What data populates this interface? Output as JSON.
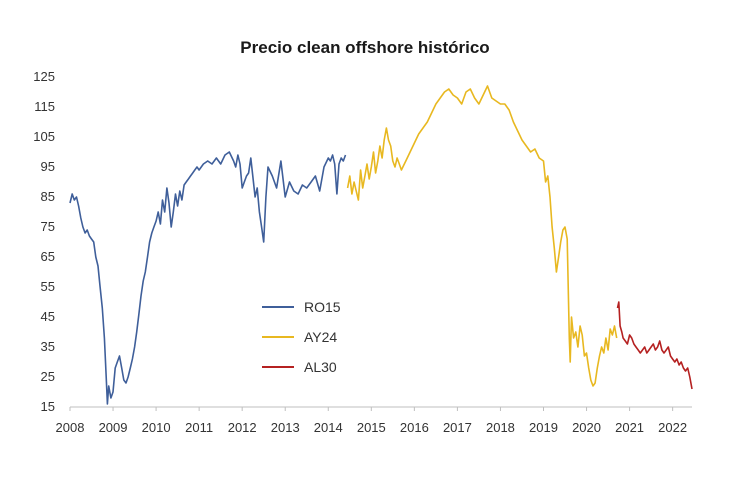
{
  "chart_data": {
    "type": "line",
    "title": "Precio clean offshore histórico",
    "xlabel": "",
    "ylabel": "",
    "xlim": [
      2008,
      2022.45
    ],
    "ylim": [
      15,
      125
    ],
    "x_ticks": [
      "2008",
      "2009",
      "2010",
      "2011",
      "2012",
      "2013",
      "2014",
      "2015",
      "2016",
      "2017",
      "2018",
      "2019",
      "2020",
      "2021",
      "2022"
    ],
    "y_ticks": [
      "15",
      "25",
      "35",
      "45",
      "55",
      "65",
      "75",
      "85",
      "95",
      "105",
      "115",
      "125"
    ],
    "grid": false,
    "legend_position": "center-left",
    "series": [
      {
        "name": "RO15",
        "color": "#3f5f9a",
        "x": [
          2008.0,
          2008.05,
          2008.1,
          2008.15,
          2008.2,
          2008.25,
          2008.3,
          2008.35,
          2008.4,
          2008.45,
          2008.5,
          2008.55,
          2008.6,
          2008.65,
          2008.7,
          2008.75,
          2008.8,
          2008.84,
          2008.87,
          2008.9,
          2008.95,
          2009.0,
          2009.05,
          2009.1,
          2009.15,
          2009.2,
          2009.25,
          2009.3,
          2009.35,
          2009.4,
          2009.45,
          2009.5,
          2009.55,
          2009.6,
          2009.65,
          2009.7,
          2009.75,
          2009.8,
          2009.85,
          2009.9,
          2009.95,
          2010.0,
          2010.05,
          2010.1,
          2010.15,
          2010.2,
          2010.25,
          2010.3,
          2010.35,
          2010.4,
          2010.45,
          2010.5,
          2010.55,
          2010.6,
          2010.65,
          2010.7,
          2010.75,
          2010.8,
          2010.85,
          2010.9,
          2010.95,
          2011.0,
          2011.1,
          2011.2,
          2011.3,
          2011.4,
          2011.5,
          2011.6,
          2011.7,
          2011.8,
          2011.85,
          2011.9,
          2011.95,
          2012.0,
          2012.05,
          2012.1,
          2012.15,
          2012.2,
          2012.3,
          2012.35,
          2012.4,
          2012.45,
          2012.5,
          2012.55,
          2012.6,
          2012.7,
          2012.8,
          2012.9,
          2013.0,
          2013.1,
          2013.2,
          2013.3,
          2013.4,
          2013.5,
          2013.6,
          2013.7,
          2013.8,
          2013.9,
          2014.0,
          2014.05,
          2014.1,
          2014.15,
          2014.2,
          2014.25,
          2014.3,
          2014.35,
          2014.4
        ],
        "values": [
          83,
          86,
          84,
          85,
          82,
          78,
          75,
          73,
          74,
          72,
          71,
          70,
          65,
          62,
          55,
          48,
          38,
          25,
          16,
          22,
          18,
          20,
          28,
          30,
          32,
          28,
          24,
          23,
          25,
          28,
          31,
          35,
          40,
          46,
          52,
          57,
          60,
          65,
          70,
          73,
          75,
          77,
          80,
          76,
          84,
          80,
          88,
          83,
          75,
          80,
          86,
          82,
          87,
          84,
          89,
          90,
          91,
          92,
          93,
          94,
          95,
          94,
          96,
          97,
          96,
          98,
          96,
          99,
          100,
          97,
          95,
          99,
          96,
          88,
          90,
          92,
          93,
          98,
          85,
          88,
          80,
          75,
          70,
          85,
          95,
          92,
          88,
          97,
          85,
          90,
          87,
          86,
          89,
          88,
          90,
          92,
          87,
          95,
          98,
          97,
          99,
          96,
          86,
          96,
          98,
          97,
          99
        ]
      },
      {
        "name": "AY24",
        "color": "#e8b820",
        "x": [
          2014.45,
          2014.5,
          2014.55,
          2014.6,
          2014.65,
          2014.7,
          2014.75,
          2014.8,
          2014.85,
          2014.9,
          2014.95,
          2015.0,
          2015.05,
          2015.1,
          2015.15,
          2015.2,
          2015.25,
          2015.3,
          2015.35,
          2015.4,
          2015.45,
          2015.5,
          2015.55,
          2015.6,
          2015.65,
          2015.7,
          2015.8,
          2015.9,
          2016.0,
          2016.1,
          2016.2,
          2016.3,
          2016.4,
          2016.5,
          2016.6,
          2016.7,
          2016.8,
          2016.9,
          2017.0,
          2017.1,
          2017.2,
          2017.3,
          2017.4,
          2017.5,
          2017.6,
          2017.7,
          2017.8,
          2017.9,
          2018.0,
          2018.1,
          2018.2,
          2018.3,
          2018.4,
          2018.5,
          2018.6,
          2018.7,
          2018.8,
          2018.9,
          2019.0,
          2019.05,
          2019.1,
          2019.15,
          2019.2,
          2019.25,
          2019.3,
          2019.35,
          2019.4,
          2019.45,
          2019.5,
          2019.55,
          2019.6,
          2019.62,
          2019.65,
          2019.7,
          2019.75,
          2019.8,
          2019.85,
          2019.9,
          2019.95,
          2020.0,
          2020.05,
          2020.1,
          2020.15,
          2020.2,
          2020.25,
          2020.3,
          2020.35,
          2020.4,
          2020.45,
          2020.5,
          2020.55,
          2020.6,
          2020.65,
          2020.7
        ],
        "values": [
          88,
          92,
          86,
          90,
          87,
          84,
          94,
          88,
          92,
          96,
          91,
          95,
          100,
          93,
          97,
          102,
          98,
          104,
          108,
          104,
          102,
          97,
          95,
          98,
          96,
          94,
          97,
          100,
          103,
          106,
          108,
          110,
          113,
          116,
          118,
          120,
          121,
          119,
          118,
          116,
          120,
          121,
          118,
          116,
          119,
          122,
          118,
          117,
          116,
          116,
          114,
          110,
          107,
          104,
          102,
          100,
          101,
          98,
          97,
          90,
          92,
          85,
          75,
          68,
          60,
          65,
          70,
          74,
          75,
          71,
          38,
          30,
          45,
          38,
          40,
          35,
          42,
          39,
          32,
          33,
          28,
          24,
          22,
          23,
          28,
          32,
          35,
          33,
          38,
          34,
          41,
          39,
          42,
          38
        ]
      },
      {
        "name": "AL30",
        "color": "#b52121",
        "x": [
          2020.72,
          2020.75,
          2020.78,
          2020.82,
          2020.85,
          2020.9,
          2020.95,
          2021.0,
          2021.05,
          2021.1,
          2021.15,
          2021.2,
          2021.25,
          2021.3,
          2021.35,
          2021.4,
          2021.45,
          2021.5,
          2021.55,
          2021.6,
          2021.65,
          2021.7,
          2021.75,
          2021.8,
          2021.85,
          2021.9,
          2021.95,
          2022.0,
          2022.05,
          2022.1,
          2022.15,
          2022.2,
          2022.25,
          2022.3,
          2022.35,
          2022.4,
          2022.45
        ],
        "values": [
          48,
          50,
          42,
          40,
          38,
          37,
          36,
          39,
          38,
          36,
          35,
          34,
          33,
          34,
          35,
          33,
          34,
          35,
          36,
          34,
          35,
          37,
          34,
          33,
          34,
          35,
          32,
          31,
          30,
          31,
          29,
          30,
          28,
          27,
          28,
          25,
          21
        ]
      }
    ]
  }
}
